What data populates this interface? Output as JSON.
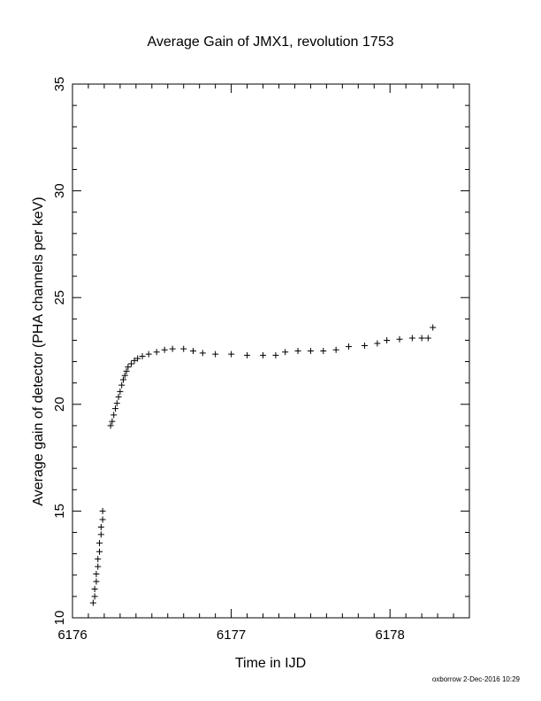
{
  "chart_data": {
    "type": "scatter",
    "title": "Average Gain of JMX1, revolution 1753",
    "xlabel": "Time in IJD",
    "ylabel": "Average gain of detector (PHA channels per keV)",
    "xlim": [
      6176,
      6178.5
    ],
    "ylim": [
      10,
      35
    ],
    "xticks": [
      6176,
      6177,
      6178
    ],
    "yticks": [
      10,
      15,
      20,
      25,
      30,
      35
    ],
    "marker": "plus",
    "marker_color": "#000000",
    "grid": false,
    "series": [
      {
        "points": [
          [
            6176.13,
            10.7
          ],
          [
            6176.14,
            11.0
          ],
          [
            6176.14,
            11.35
          ],
          [
            6176.15,
            11.7
          ],
          [
            6176.15,
            12.05
          ],
          [
            6176.16,
            12.4
          ],
          [
            6176.16,
            12.75
          ],
          [
            6176.17,
            13.1
          ],
          [
            6176.17,
            13.5
          ],
          [
            6176.18,
            13.9
          ],
          [
            6176.18,
            14.25
          ],
          [
            6176.19,
            14.6
          ],
          [
            6176.19,
            15.0
          ],
          [
            6176.24,
            19.0
          ],
          [
            6176.25,
            19.2
          ],
          [
            6176.26,
            19.5
          ],
          [
            6176.27,
            19.8
          ],
          [
            6176.28,
            20.05
          ],
          [
            6176.29,
            20.35
          ],
          [
            6176.3,
            20.6
          ],
          [
            6176.31,
            20.9
          ],
          [
            6176.32,
            21.15
          ],
          [
            6176.33,
            21.35
          ],
          [
            6176.34,
            21.55
          ],
          [
            6176.35,
            21.75
          ],
          [
            6176.37,
            21.9
          ],
          [
            6176.39,
            22.05
          ],
          [
            6176.41,
            22.15
          ],
          [
            6176.44,
            22.25
          ],
          [
            6176.48,
            22.35
          ],
          [
            6176.53,
            22.45
          ],
          [
            6176.58,
            22.55
          ],
          [
            6176.63,
            22.6
          ],
          [
            6176.7,
            22.6
          ],
          [
            6176.76,
            22.5
          ],
          [
            6176.82,
            22.4
          ],
          [
            6176.9,
            22.35
          ],
          [
            6177.0,
            22.35
          ],
          [
            6177.1,
            22.3
          ],
          [
            6177.2,
            22.3
          ],
          [
            6177.28,
            22.3
          ],
          [
            6177.34,
            22.45
          ],
          [
            6177.42,
            22.5
          ],
          [
            6177.5,
            22.5
          ],
          [
            6177.58,
            22.5
          ],
          [
            6177.66,
            22.55
          ],
          [
            6177.74,
            22.7
          ],
          [
            6177.84,
            22.75
          ],
          [
            6177.92,
            22.85
          ],
          [
            6177.98,
            23.0
          ],
          [
            6178.06,
            23.05
          ],
          [
            6178.14,
            23.1
          ],
          [
            6178.2,
            23.1
          ],
          [
            6178.24,
            23.1
          ],
          [
            6178.27,
            23.6
          ]
        ]
      }
    ]
  },
  "footer": "oxborrow  2-Dec-2016 10:29"
}
